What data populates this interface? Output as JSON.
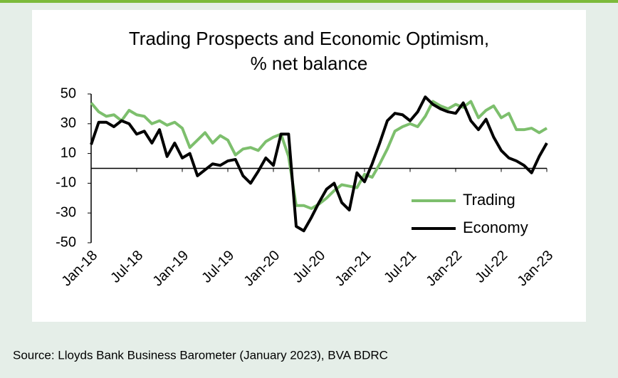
{
  "chart_data": {
    "type": "line",
    "title": [
      "Trading Prospects and Economic Optimism,",
      "% net balance"
    ],
    "source": "Source: Lloyds Bank Business Barometer (January 2023), BVA BDRC",
    "categories": [
      "Jan-18",
      null,
      null,
      null,
      null,
      null,
      "Jul-18",
      null,
      null,
      null,
      null,
      null,
      "Jan-19",
      null,
      null,
      null,
      null,
      null,
      "Jul-19",
      null,
      null,
      null,
      null,
      null,
      "Jan-20",
      null,
      null,
      null,
      null,
      null,
      "Jul-20",
      null,
      null,
      null,
      null,
      null,
      "Jan-21",
      null,
      null,
      null,
      null,
      null,
      "Jul-21",
      null,
      null,
      null,
      null,
      null,
      "Jan-22",
      null,
      null,
      null,
      null,
      null,
      "Jul-22",
      null,
      null,
      null,
      null,
      null,
      "Jan-23"
    ],
    "series": [
      {
        "name": "Trading",
        "color": "#7dbf6d",
        "values": [
          44,
          38,
          35,
          36,
          32,
          39,
          36,
          35,
          30,
          32,
          29,
          31,
          27,
          14,
          19,
          24,
          17,
          22,
          19,
          9,
          13,
          14,
          12,
          18,
          21,
          23,
          8,
          -25,
          -25,
          -27,
          -24,
          -20,
          -15,
          -11,
          -12,
          -13,
          -4,
          -6,
          3,
          13,
          25,
          28,
          30,
          28,
          35,
          45,
          42,
          40,
          43,
          41,
          45,
          34,
          39,
          42,
          34,
          37,
          26,
          26,
          27,
          24,
          27
        ]
      },
      {
        "name": "Economy",
        "color": "#000000",
        "values": [
          16,
          31,
          31,
          28,
          32,
          30,
          23,
          25,
          17,
          26,
          8,
          17,
          7,
          10,
          -5,
          -1,
          3,
          2,
          5,
          6,
          -5,
          -10,
          -2,
          7,
          2,
          23,
          23,
          -39,
          -42,
          -33,
          -23,
          -14,
          -10,
          -23,
          -28,
          -3,
          -9,
          3,
          17,
          32,
          37,
          36,
          32,
          38,
          48,
          43,
          40,
          38,
          37,
          44,
          32,
          26,
          33,
          21,
          12,
          7,
          5,
          2,
          -3,
          8,
          17
        ]
      }
    ],
    "ylim": [
      -50,
      50
    ],
    "yticks": [
      -50,
      -30,
      -10,
      10,
      30,
      50
    ],
    "legend": "lower right"
  }
}
